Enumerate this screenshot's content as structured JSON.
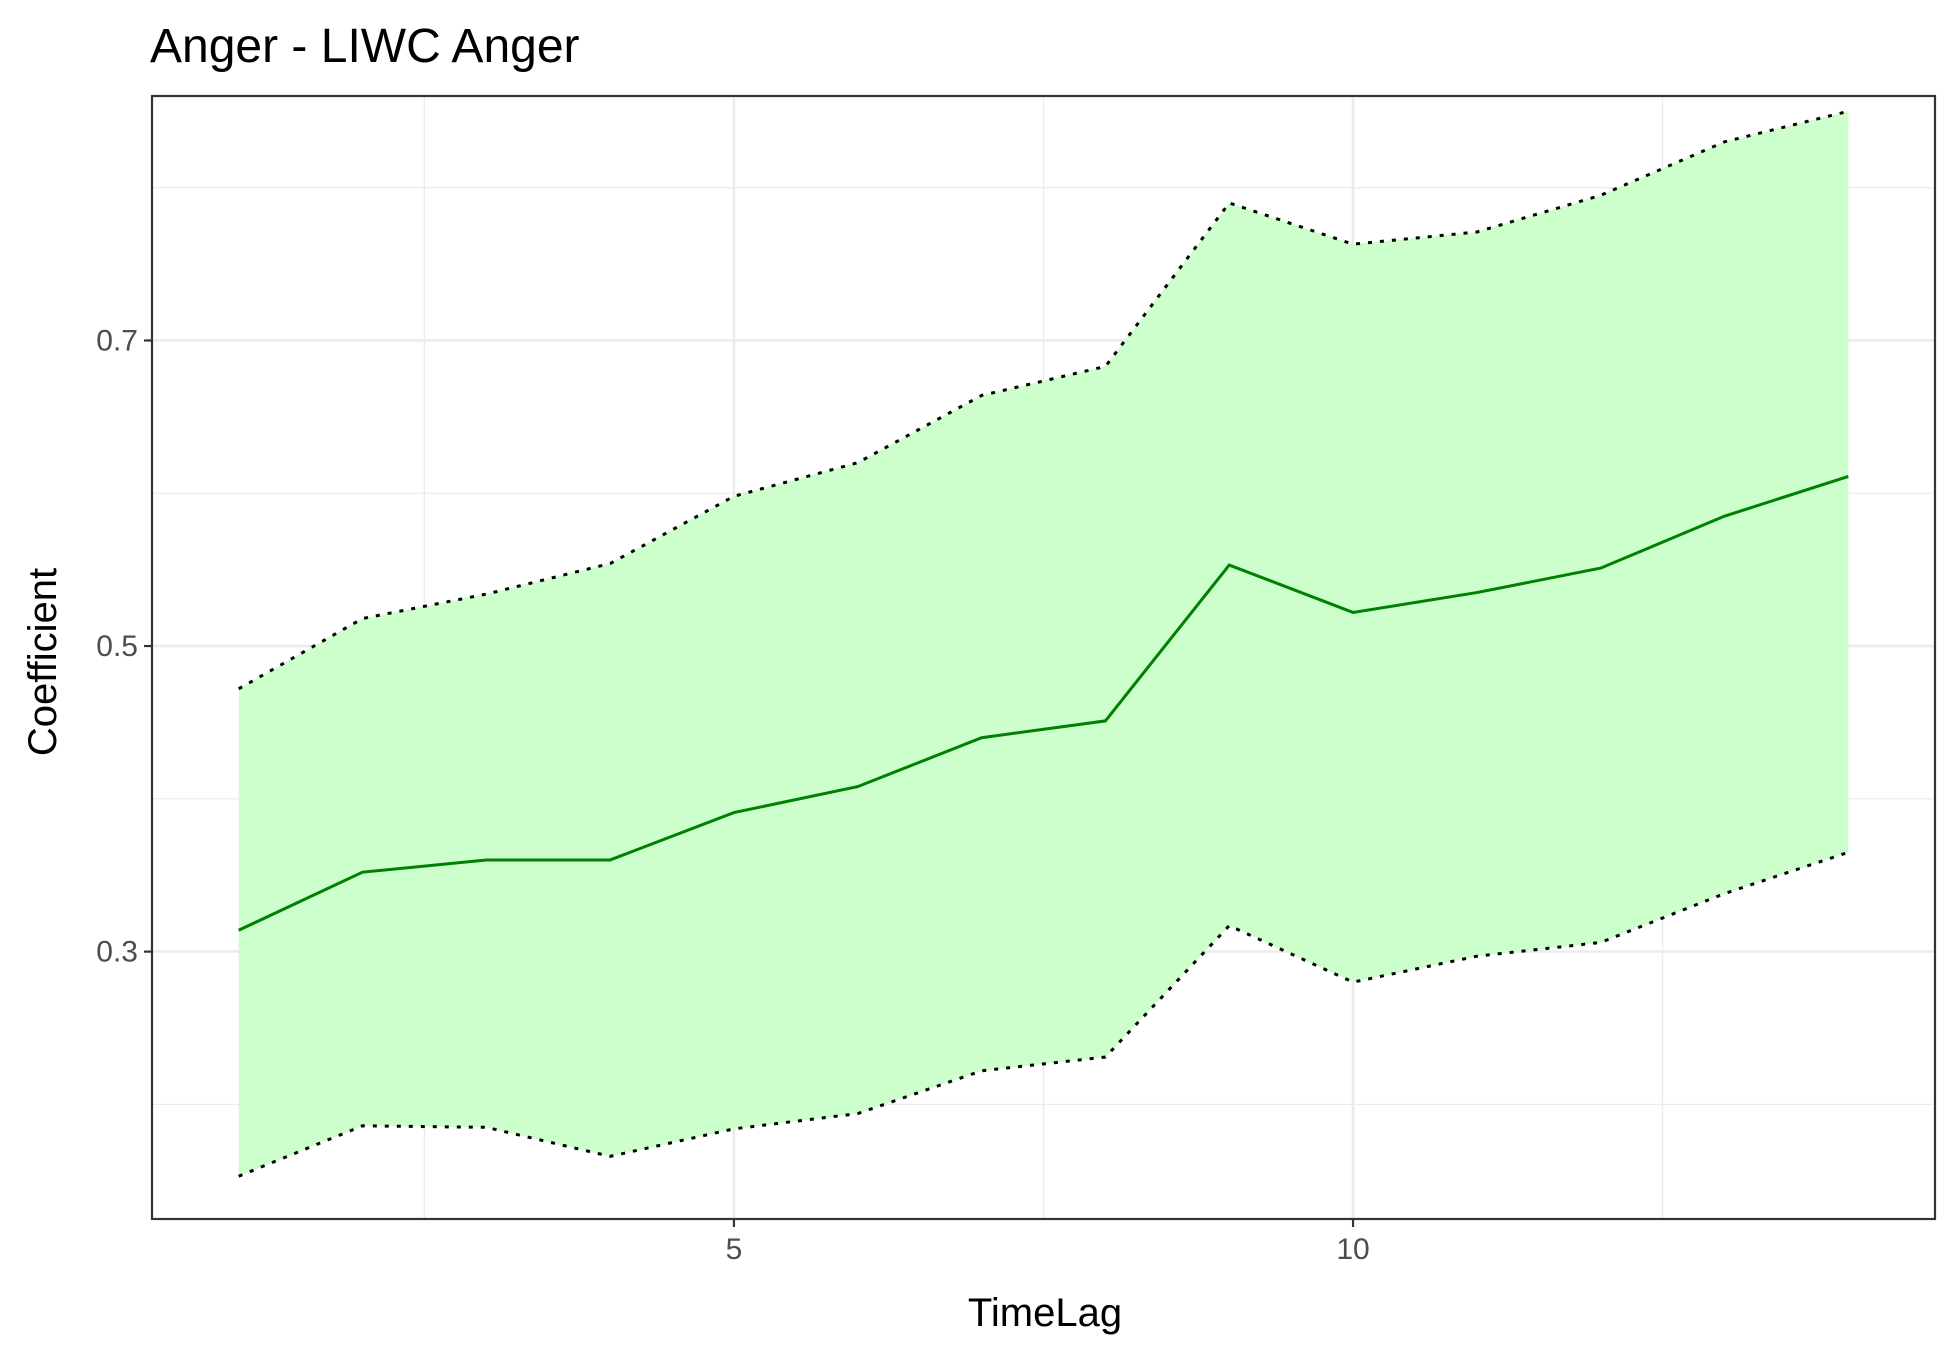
{
  "chart_data": {
    "type": "line",
    "title": "Anger - LIWC Anger",
    "xlabel": "TimeLag",
    "ylabel": "Coefficient",
    "xlim": [
      0.3,
      14.7
    ],
    "ylim": [
      0.125,
      0.86
    ],
    "x_major_ticks": [
      5,
      10
    ],
    "x_minor_ticks": [
      2.5,
      7.5,
      12.5
    ],
    "y_major_ticks": [
      0.3,
      0.5,
      0.7
    ],
    "y_minor_ticks": [
      0.2,
      0.4,
      0.6,
      0.8
    ],
    "x_tick_labels": [
      "5",
      "10"
    ],
    "y_tick_labels": [
      "0.3",
      "0.5",
      "0.7"
    ],
    "grid": true,
    "legend": "none",
    "x": [
      1,
      2,
      3,
      4,
      5,
      6,
      7,
      8,
      9,
      10,
      11,
      12,
      13,
      14
    ],
    "series": [
      {
        "role": "estimate",
        "style": "solid",
        "color": "#008000",
        "values": [
          0.314,
          0.352,
          0.36,
          0.36,
          0.391,
          0.408,
          0.44,
          0.451,
          0.553,
          0.522,
          0.535,
          0.551,
          0.585,
          0.611
        ]
      },
      {
        "role": "upper-bound",
        "style": "dotted",
        "color": "#000000",
        "values": [
          0.472,
          0.518,
          0.534,
          0.554,
          0.598,
          0.62,
          0.664,
          0.683,
          0.79,
          0.763,
          0.771,
          0.795,
          0.83,
          0.85
        ]
      },
      {
        "role": "lower-bound",
        "style": "dotted",
        "color": "#000000",
        "values": [
          0.153,
          0.186,
          0.185,
          0.166,
          0.184,
          0.194,
          0.222,
          0.231,
          0.317,
          0.28,
          0.297,
          0.306,
          0.338,
          0.365
        ]
      }
    ],
    "ribbon_fill": "#ccffcc"
  }
}
